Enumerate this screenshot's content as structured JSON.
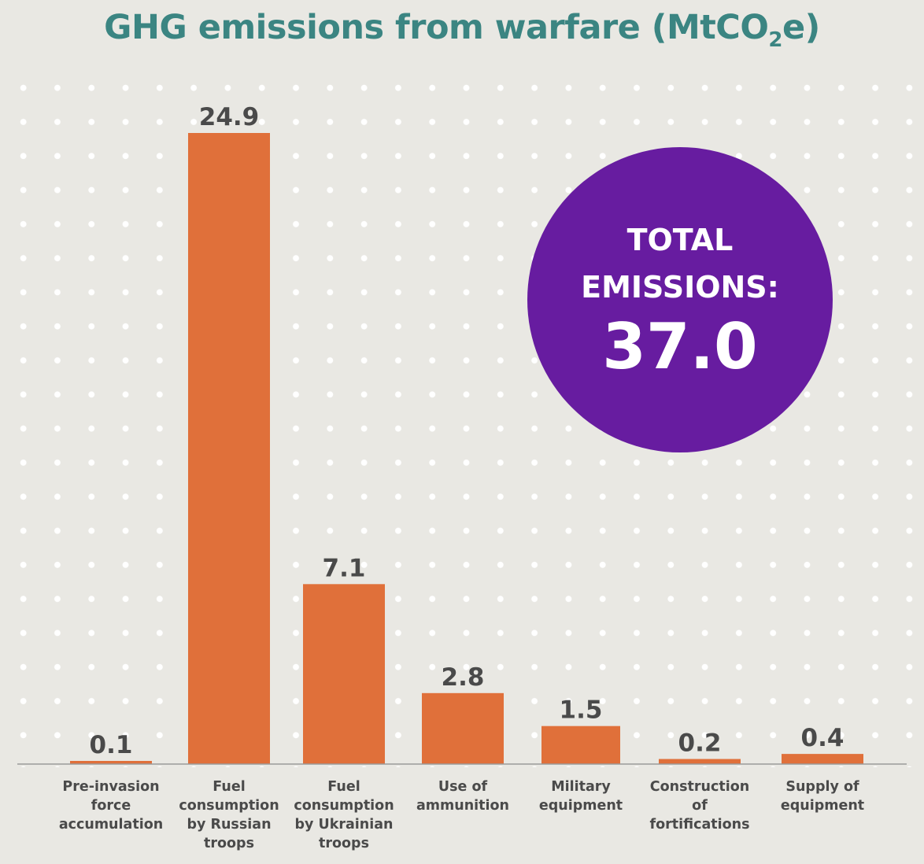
{
  "title_main": "GHG emissions from warfare (MtCO",
  "title_sub": "2",
  "title_end": "e)",
  "chart_data": {
    "type": "bar",
    "title": "GHG emissions from warfare (MtCO2e)",
    "categories": [
      [
        "Pre-invasion",
        "force",
        "accumulation"
      ],
      [
        "Fuel",
        "consumption",
        "by Russian",
        "troops"
      ],
      [
        "Fuel",
        "consumption",
        "by Ukrainian",
        "troops"
      ],
      [
        "Use of",
        "ammunition"
      ],
      [
        "Military",
        "equipment"
      ],
      [
        "Construction",
        "of",
        "fortifications"
      ],
      [
        "Supply of",
        "equipment"
      ]
    ],
    "values": [
      0.1,
      24.9,
      7.1,
      2.8,
      1.5,
      0.2,
      0.4
    ],
    "value_labels": [
      "0.1",
      "24.9",
      "7.1",
      "2.8",
      "1.5",
      "0.2",
      "0.4"
    ],
    "ylim": [
      0,
      24.9
    ],
    "xlabel": "",
    "ylabel": "",
    "bar_color": "#e0703a"
  },
  "total": {
    "line1": "TOTAL",
    "line2": "EMISSIONS:",
    "value": "37.0",
    "color": "#671ca0"
  },
  "colors": {
    "title": "#3b8582",
    "background": "#e9e8e3",
    "text": "#4a4a4a"
  }
}
